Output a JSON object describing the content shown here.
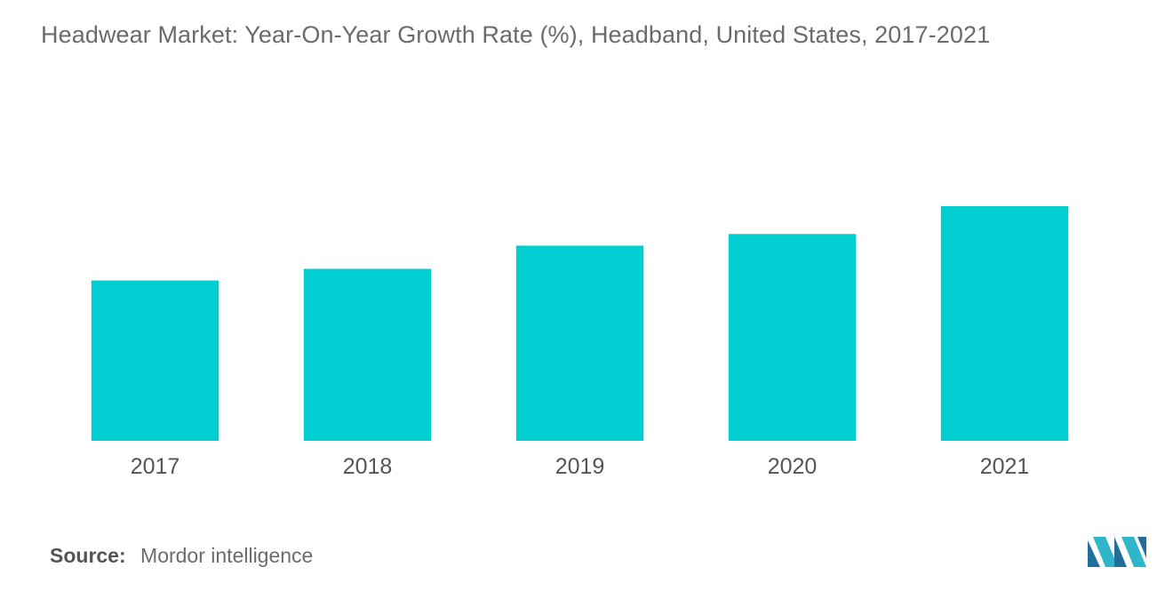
{
  "chart_data": {
    "type": "bar",
    "title": "Headwear Market: Year-On-Year Growth Rate (%), Headband, United States, 2017-2021",
    "categories": [
      "2017",
      "2018",
      "2019",
      "2020",
      "2021"
    ],
    "values": [
      6.9,
      7.4,
      8.4,
      8.9,
      10.1
    ],
    "xlabel": "",
    "ylabel": "",
    "ylim": [
      0,
      14
    ],
    "grid": false,
    "legend": "none",
    "bar_color": "#00CED1"
  },
  "source": {
    "label": "Source:",
    "text": "Mordor intelligence"
  },
  "logo": {
    "icon": "mordor-intelligence-logo-icon",
    "colors": [
      "#1f6f9a",
      "#2fb6c8"
    ]
  }
}
